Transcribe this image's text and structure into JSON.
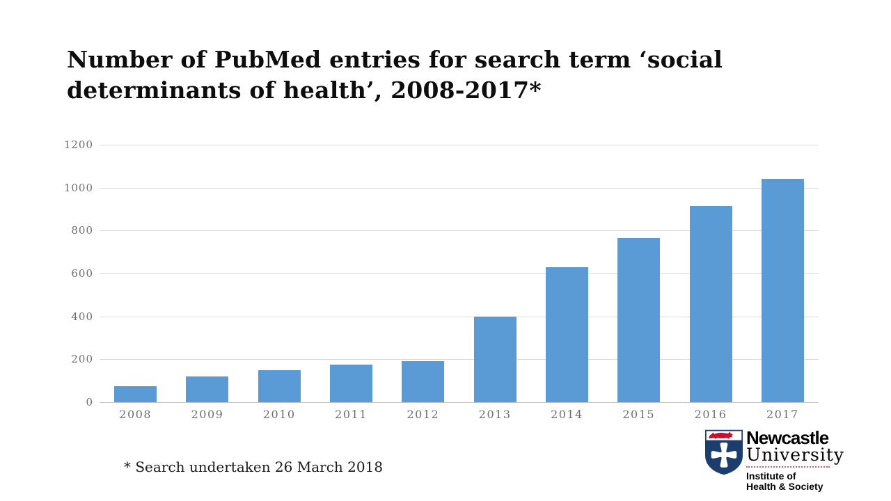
{
  "slide": {
    "title_lines": [
      "Number of PubMed entries for search term ‘social",
      "determinants of health’, 2008-2017*"
    ],
    "footnote": "* Search undertaken 26 March 2018"
  },
  "chart_data": {
    "type": "bar",
    "title": "Number of PubMed entries for search term ‘social determinants of health’, 2008-2017*",
    "categories": [
      "2008",
      "2009",
      "2010",
      "2011",
      "2012",
      "2013",
      "2014",
      "2015",
      "2016",
      "2017"
    ],
    "values": [
      75,
      120,
      150,
      175,
      190,
      400,
      630,
      765,
      915,
      1040
    ],
    "xlabel": "",
    "ylabel": "",
    "ylim": [
      0,
      1200
    ],
    "y_ticks": [
      0,
      200,
      400,
      600,
      800,
      1000,
      1200
    ],
    "grid": true,
    "legend": "none",
    "bar_color": "#5B9BD5"
  },
  "logo": {
    "line1": "Newcastle",
    "line2": "University",
    "sub_line1": "Institute of",
    "sub_line2": "Health & Society",
    "navy": "#1C3E6E",
    "red": "#C8102E"
  },
  "colors": {
    "background": "#ffffff",
    "gridline": "#d9d9d9",
    "axis_line": "#c4c4c4",
    "tick_text": "#6e6e6e",
    "title_text": "#0d0d0d"
  }
}
